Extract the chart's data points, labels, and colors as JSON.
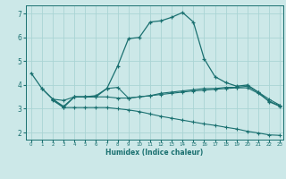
{
  "xlabel": "Humidex (Indice chaleur)",
  "background_color": "#cce8e8",
  "grid_color": "#aad4d4",
  "line_color": "#1a7070",
  "xlim": [
    -0.5,
    23.3
  ],
  "ylim": [
    1.7,
    7.35
  ],
  "yticks": [
    2,
    3,
    4,
    5,
    6,
    7
  ],
  "xticks": [
    0,
    1,
    2,
    3,
    4,
    5,
    6,
    7,
    8,
    9,
    10,
    11,
    12,
    13,
    14,
    15,
    16,
    17,
    18,
    19,
    20,
    21,
    22,
    23
  ],
  "line1_x": [
    0,
    1,
    2,
    3,
    4,
    5,
    6,
    7,
    8,
    9,
    10,
    11,
    12,
    13,
    14,
    15,
    16,
    17,
    18,
    19,
    20,
    21,
    22,
    23
  ],
  "line1_y": [
    4.5,
    3.85,
    3.4,
    3.1,
    3.5,
    3.5,
    3.55,
    3.85,
    4.8,
    5.95,
    6.0,
    6.65,
    6.7,
    6.85,
    7.05,
    6.65,
    5.1,
    4.35,
    4.1,
    3.95,
    4.0,
    3.7,
    3.3,
    3.1
  ],
  "line2_x": [
    1,
    2,
    3,
    4,
    5,
    6,
    7,
    8,
    9,
    10,
    11,
    12,
    13,
    14,
    15,
    16,
    17,
    18,
    19,
    20,
    21,
    22,
    23
  ],
  "line2_y": [
    3.85,
    3.4,
    3.35,
    3.5,
    3.5,
    3.5,
    3.5,
    3.45,
    3.45,
    3.5,
    3.55,
    3.65,
    3.7,
    3.75,
    3.8,
    3.85,
    3.85,
    3.9,
    3.9,
    3.95,
    3.7,
    3.4,
    3.15
  ],
  "line3_x": [
    2,
    3,
    4,
    5,
    6,
    7,
    8,
    9,
    10,
    11,
    12,
    13,
    14,
    15,
    16,
    17,
    18,
    19,
    20,
    21,
    22,
    23
  ],
  "line3_y": [
    3.4,
    3.05,
    3.5,
    3.5,
    3.5,
    3.85,
    3.9,
    3.45,
    3.5,
    3.55,
    3.6,
    3.65,
    3.7,
    3.75,
    3.78,
    3.82,
    3.85,
    3.88,
    3.88,
    3.65,
    3.32,
    3.12
  ],
  "line4_x": [
    2,
    3,
    4,
    5,
    6,
    7,
    8,
    9,
    10,
    11,
    12,
    13,
    14,
    15,
    16,
    17,
    18,
    19,
    20,
    21,
    22,
    23
  ],
  "line4_y": [
    3.35,
    3.05,
    3.05,
    3.05,
    3.05,
    3.05,
    3.0,
    2.95,
    2.88,
    2.78,
    2.68,
    2.6,
    2.52,
    2.44,
    2.36,
    2.3,
    2.22,
    2.15,
    2.05,
    1.98,
    1.9,
    1.88
  ]
}
